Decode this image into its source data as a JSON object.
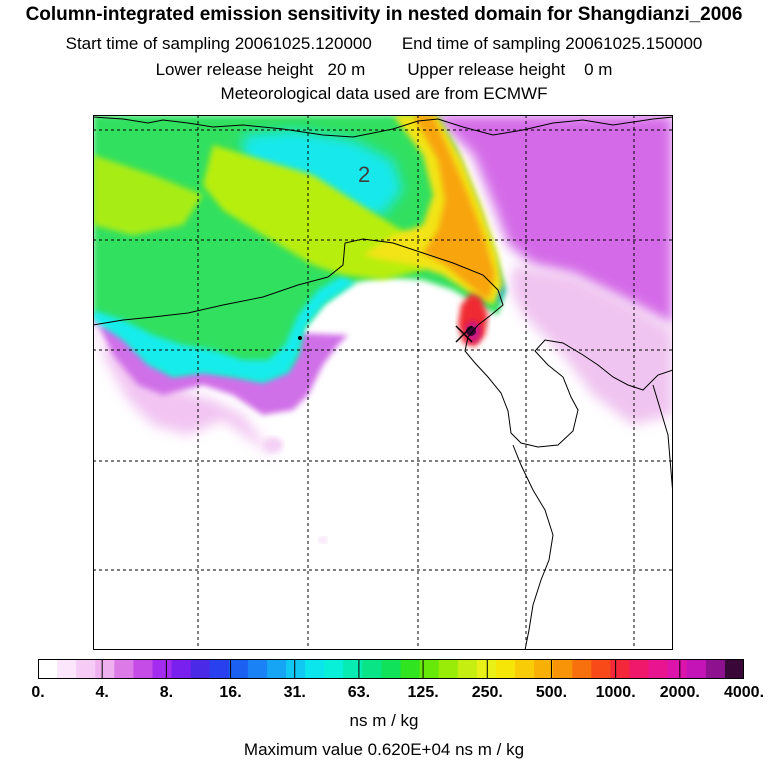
{
  "title": "Column-integrated emission sensitivity in nested domain for Shangdianzi_2006",
  "sampling": {
    "start": "Start time of sampling 20061025.120000",
    "end": "End time of sampling 20061025.150000"
  },
  "release": {
    "lower": "Lower release height   20 m",
    "upper": "Upper release height    0 m"
  },
  "met_source": "Meteorological data used are from ECMWF",
  "contour_label": "2",
  "colorbar": {
    "tick_labels": [
      "0.",
      "4.",
      "8.",
      "16.",
      "31.",
      "63.",
      "125.",
      "250.",
      "500.",
      "1000.",
      "2000.",
      "4000."
    ],
    "colors": [
      "#ffffff",
      "#fbe6fb",
      "#f6ccf6",
      "#efb0ef",
      "#dc7ae8",
      "#c64ce8",
      "#a42cee",
      "#7a20ee",
      "#4a2ae6",
      "#2840ee",
      "#1c60f2",
      "#1a82f4",
      "#16a4f4",
      "#10c8f2",
      "#0ae6ec",
      "#08f0d8",
      "#06ecb2",
      "#08e486",
      "#10e25a",
      "#30e420",
      "#66e808",
      "#98ec08",
      "#c6ee10",
      "#e8f018",
      "#f6e608",
      "#f8cc06",
      "#f8b006",
      "#f89408",
      "#f8700e",
      "#f84a18",
      "#f4283a",
      "#f0186a",
      "#e81490",
      "#dc14ac",
      "#c414b8",
      "#8e1290",
      "#3a0838"
    ],
    "unit": "ns m / kg"
  },
  "max_value": "Maximum value  0.620E+04 ns m / kg",
  "colors": {
    "cyan": "#10f0f0",
    "green": "#20e050",
    "yellow": "#f0e010",
    "orange": "#f8a010",
    "red": "#f02030",
    "magenta": "#e020e0",
    "lavender": "#f0c0f0"
  }
}
